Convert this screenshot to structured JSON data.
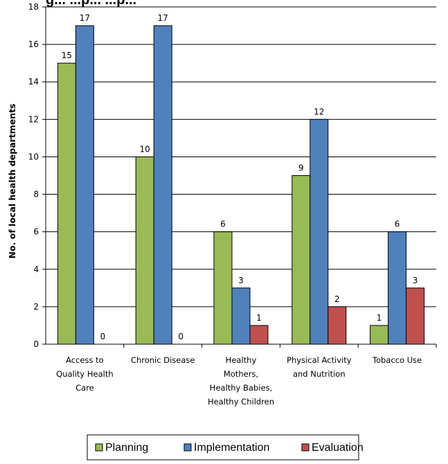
{
  "chart_data": {
    "type": "bar",
    "title_fragment": "g... ...p... ...p...",
    "ylabel": "No. of local health departments",
    "xlabel": "",
    "ylim": [
      0,
      18
    ],
    "yticks": [
      0,
      2,
      4,
      6,
      8,
      10,
      12,
      14,
      16,
      18
    ],
    "grid": true,
    "legend_position": "bottom-center",
    "categories": [
      [
        "Access to",
        "Quality Health",
        "Care"
      ],
      [
        "Chronic Disease"
      ],
      [
        "Healthy",
        "Mothers,",
        "Healthy Babies,",
        "Healthy Children"
      ],
      [
        "Physical Activity",
        "and Nutrition"
      ],
      [
        "Tobacco Use"
      ]
    ],
    "series": [
      {
        "name": "Planning",
        "color": "#99bb55",
        "values": [
          15,
          10,
          6,
          9,
          1
        ]
      },
      {
        "name": "Implementation",
        "color": "#4f81bd",
        "values": [
          17,
          17,
          3,
          12,
          6
        ]
      },
      {
        "name": "Evaluation",
        "color": "#c0504d",
        "values": [
          0,
          0,
          1,
          2,
          3
        ]
      }
    ]
  }
}
